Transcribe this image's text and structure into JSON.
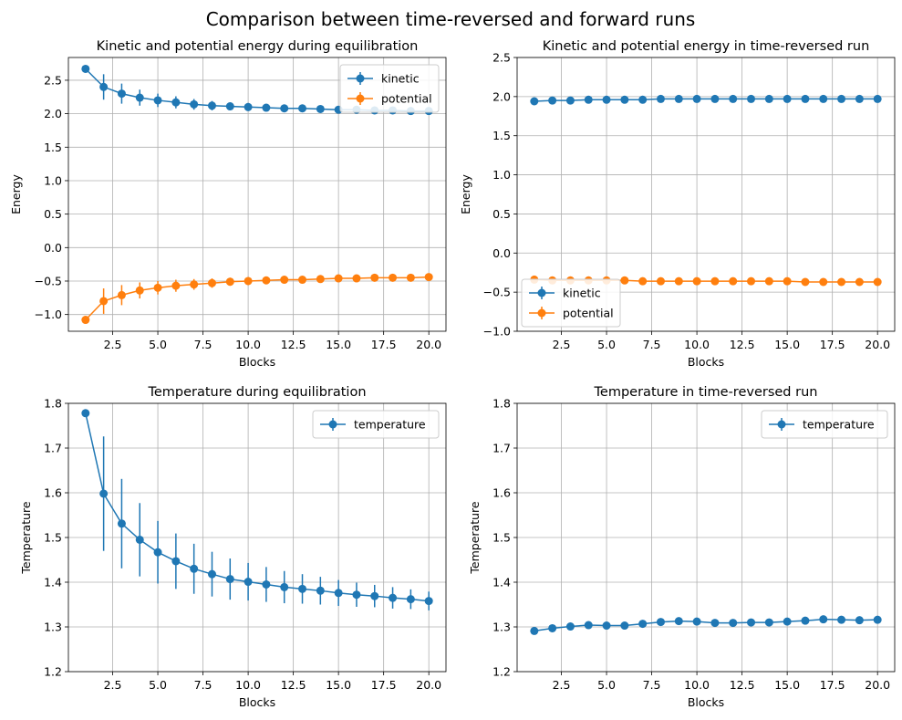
{
  "figure": {
    "suptitle": "Comparison between time-reversed and forward runs"
  },
  "chart_data": [
    {
      "type": "line",
      "title": "Kinetic and potential energy during equilibration",
      "xlabel": "Blocks",
      "ylabel": "Energy",
      "xlim": [
        0.05,
        20.95
      ],
      "ylim": [
        -1.25,
        2.84
      ],
      "xticks": [
        2.5,
        5.0,
        7.5,
        10.0,
        12.5,
        15.0,
        17.5,
        20.0
      ],
      "xtick_labels": [
        "2.5",
        "5.0",
        "7.5",
        "10.0",
        "12.5",
        "15.0",
        "17.5",
        "20.0"
      ],
      "yticks": [
        -1.0,
        -0.5,
        0.0,
        0.5,
        1.0,
        1.5,
        2.0,
        2.5
      ],
      "ytick_labels": [
        "−1.0",
        "−0.5",
        "0.0",
        "0.5",
        "1.0",
        "1.5",
        "2.0",
        "2.5"
      ],
      "grid": true,
      "legend_position": "upper right",
      "x": [
        1,
        2,
        3,
        4,
        5,
        6,
        7,
        8,
        9,
        10,
        11,
        12,
        13,
        14,
        15,
        16,
        17,
        18,
        19,
        20
      ],
      "series": [
        {
          "name": "kinetic",
          "color": "#1f77b4",
          "values": [
            2.67,
            2.4,
            2.3,
            2.24,
            2.2,
            2.17,
            2.14,
            2.12,
            2.11,
            2.1,
            2.09,
            2.08,
            2.08,
            2.07,
            2.06,
            2.06,
            2.05,
            2.05,
            2.04,
            2.04
          ],
          "errors": [
            0,
            0.19,
            0.15,
            0.12,
            0.1,
            0.09,
            0.08,
            0.07,
            0.06,
            0.06,
            0.05,
            0.05,
            0.04,
            0.04,
            0.04,
            0.04,
            0.03,
            0.03,
            0.03,
            0.03
          ]
        },
        {
          "name": "potential",
          "color": "#ff7f0e",
          "values": [
            -1.08,
            -0.8,
            -0.71,
            -0.64,
            -0.6,
            -0.57,
            -0.55,
            -0.53,
            -0.51,
            -0.5,
            -0.49,
            -0.48,
            -0.48,
            -0.47,
            -0.46,
            -0.46,
            -0.45,
            -0.45,
            -0.45,
            -0.44
          ],
          "errors": [
            0,
            0.19,
            0.15,
            0.12,
            0.1,
            0.09,
            0.08,
            0.07,
            0.06,
            0.06,
            0.05,
            0.05,
            0.04,
            0.04,
            0.04,
            0.04,
            0.03,
            0.03,
            0.03,
            0.03
          ]
        }
      ]
    },
    {
      "type": "line",
      "title": "Kinetic and potential energy in time-reversed run",
      "xlabel": "Blocks",
      "ylabel": "Energy",
      "xlim": [
        0.05,
        20.95
      ],
      "ylim": [
        -1.0,
        2.5
      ],
      "xticks": [
        2.5,
        5.0,
        7.5,
        10.0,
        12.5,
        15.0,
        17.5,
        20.0
      ],
      "xtick_labels": [
        "2.5",
        "5.0",
        "7.5",
        "10.0",
        "12.5",
        "15.0",
        "17.5",
        "20.0"
      ],
      "yticks": [
        -1.0,
        -0.5,
        0.0,
        0.5,
        1.0,
        1.5,
        2.0,
        2.5
      ],
      "ytick_labels": [
        "−1.0",
        "−0.5",
        "0.0",
        "0.5",
        "1.0",
        "1.5",
        "2.0",
        "2.5"
      ],
      "grid": true,
      "legend_position": "lower left",
      "x": [
        1,
        2,
        3,
        4,
        5,
        6,
        7,
        8,
        9,
        10,
        11,
        12,
        13,
        14,
        15,
        16,
        17,
        18,
        19,
        20
      ],
      "series": [
        {
          "name": "kinetic",
          "color": "#1f77b4",
          "values": [
            1.94,
            1.95,
            1.95,
            1.96,
            1.96,
            1.96,
            1.96,
            1.97,
            1.97,
            1.97,
            1.97,
            1.97,
            1.97,
            1.97,
            1.97,
            1.97,
            1.97,
            1.97,
            1.97,
            1.97
          ],
          "errors": [
            0,
            0.01,
            0.01,
            0.01,
            0.01,
            0.01,
            0.01,
            0.01,
            0.01,
            0.01,
            0.01,
            0.01,
            0.01,
            0.01,
            0.01,
            0.01,
            0.01,
            0.01,
            0.01,
            0.01
          ]
        },
        {
          "name": "potential",
          "color": "#ff7f0e",
          "values": [
            -0.34,
            -0.35,
            -0.35,
            -0.35,
            -0.35,
            -0.35,
            -0.36,
            -0.36,
            -0.36,
            -0.36,
            -0.36,
            -0.36,
            -0.36,
            -0.36,
            -0.36,
            -0.37,
            -0.37,
            -0.37,
            -0.37,
            -0.37
          ],
          "errors": [
            0,
            0.01,
            0.01,
            0.01,
            0.01,
            0.01,
            0.01,
            0.01,
            0.01,
            0.01,
            0.01,
            0.01,
            0.01,
            0.01,
            0.01,
            0.01,
            0.01,
            0.01,
            0.01,
            0.01
          ]
        }
      ]
    },
    {
      "type": "line",
      "title": "Temperature during equilibration",
      "xlabel": "Blocks",
      "ylabel": "Temperature",
      "xlim": [
        0.05,
        20.95
      ],
      "ylim": [
        1.2,
        1.8
      ],
      "xticks": [
        2.5,
        5.0,
        7.5,
        10.0,
        12.5,
        15.0,
        17.5,
        20.0
      ],
      "xtick_labels": [
        "2.5",
        "5.0",
        "7.5",
        "10.0",
        "12.5",
        "15.0",
        "17.5",
        "20.0"
      ],
      "yticks": [
        1.2,
        1.3,
        1.4,
        1.5,
        1.6,
        1.7,
        1.8
      ],
      "ytick_labels": [
        "1.2",
        "1.3",
        "1.4",
        "1.5",
        "1.6",
        "1.7",
        "1.8"
      ],
      "grid": true,
      "legend_position": "upper right",
      "x": [
        1,
        2,
        3,
        4,
        5,
        6,
        7,
        8,
        9,
        10,
        11,
        12,
        13,
        14,
        15,
        16,
        17,
        18,
        19,
        20
      ],
      "series": [
        {
          "name": "temperature",
          "color": "#1f77b4",
          "values": [
            1.778,
            1.598,
            1.531,
            1.495,
            1.467,
            1.447,
            1.43,
            1.418,
            1.407,
            1.401,
            1.395,
            1.389,
            1.385,
            1.381,
            1.376,
            1.372,
            1.369,
            1.365,
            1.362,
            1.358
          ],
          "errors": [
            0,
            0.128,
            0.1,
            0.082,
            0.07,
            0.062,
            0.056,
            0.05,
            0.046,
            0.042,
            0.039,
            0.036,
            0.033,
            0.031,
            0.029,
            0.027,
            0.025,
            0.024,
            0.022,
            0.021
          ]
        }
      ]
    },
    {
      "type": "line",
      "title": "Temperature in time-reversed run",
      "xlabel": "Blocks",
      "ylabel": "Temperature",
      "xlim": [
        0.05,
        20.95
      ],
      "ylim": [
        1.2,
        1.8
      ],
      "xticks": [
        2.5,
        5.0,
        7.5,
        10.0,
        12.5,
        15.0,
        17.5,
        20.0
      ],
      "xtick_labels": [
        "2.5",
        "5.0",
        "7.5",
        "10.0",
        "12.5",
        "15.0",
        "17.5",
        "20.0"
      ],
      "yticks": [
        1.2,
        1.3,
        1.4,
        1.5,
        1.6,
        1.7,
        1.8
      ],
      "ytick_labels": [
        "1.2",
        "1.3",
        "1.4",
        "1.5",
        "1.6",
        "1.7",
        "1.8"
      ],
      "grid": true,
      "legend_position": "upper right",
      "x": [
        1,
        2,
        3,
        4,
        5,
        6,
        7,
        8,
        9,
        10,
        11,
        12,
        13,
        14,
        15,
        16,
        17,
        18,
        19,
        20
      ],
      "series": [
        {
          "name": "temperature",
          "color": "#1f77b4",
          "values": [
            1.291,
            1.297,
            1.301,
            1.304,
            1.303,
            1.303,
            1.307,
            1.311,
            1.313,
            1.312,
            1.309,
            1.309,
            1.31,
            1.31,
            1.312,
            1.314,
            1.317,
            1.316,
            1.315,
            1.316
          ],
          "errors": [
            0,
            0.003,
            0.003,
            0.003,
            0.003,
            0.003,
            0.003,
            0.003,
            0.003,
            0.003,
            0.003,
            0.003,
            0.003,
            0.003,
            0.003,
            0.003,
            0.003,
            0.003,
            0.003,
            0.003
          ]
        }
      ]
    }
  ]
}
